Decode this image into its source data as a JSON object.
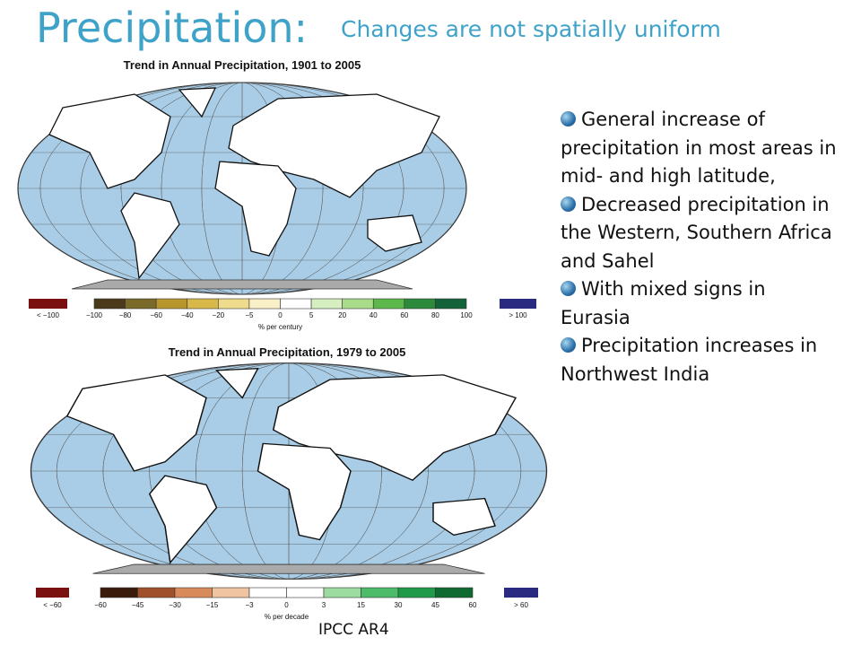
{
  "title": "Precipitation:",
  "subtitle": "Changes are not spatially uniform",
  "maps": [
    {
      "title": "Trend in Annual Precipitation, 1901 to 2005",
      "ticks": [
        "−100",
        "−80",
        "−60",
        "−40",
        "−20",
        "−5",
        "0",
        "5",
        "20",
        "40",
        "60",
        "80",
        "100"
      ],
      "colors": [
        "#4a3a1a",
        "#7a6a2a",
        "#b8962e",
        "#d9b84a",
        "#eedc8c",
        "#faf0c8",
        "#ffffff",
        "#d6efc0",
        "#a8dc8a",
        "#5cb84a",
        "#2c8a3a",
        "#14623a",
        "#0b5e5e"
      ],
      "low_label": "< −100",
      "high_label": "> 100",
      "low_color": "#7a1010",
      "high_color": "#2a2a80",
      "unit": "% per century"
    },
    {
      "title": "Trend in Annual Precipitation, 1979 to 2005",
      "ticks": [
        "−60",
        "−45",
        "−30",
        "−15",
        "−3",
        "0",
        "3",
        "15",
        "30",
        "45",
        "60"
      ],
      "colors": [
        "#3a1a0a",
        "#a0502a",
        "#d98a5a",
        "#f0c4a0",
        "#ffffff",
        "#ffffff",
        "#9cdca0",
        "#4cbc6a",
        "#1e9a48",
        "#0e6a30",
        "#0a4a20"
      ],
      "low_label": "< −60",
      "high_label": "> 60",
      "low_color": "#7a1010",
      "high_color": "#2a2a80",
      "unit": "% per decade"
    }
  ],
  "bullets": [
    "General increase of precipitation in most areas in mid- and high latitude,",
    "Decreased precipitation in the Western, Southern Africa and Sahel",
    "With mixed signs in Eurasia",
    "Precipitation increases in Northwest India"
  ],
  "source": "IPCC AR4"
}
